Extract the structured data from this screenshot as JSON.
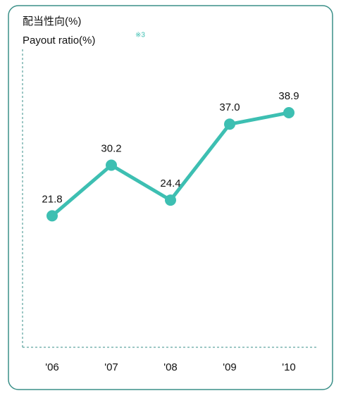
{
  "chart_data": {
    "type": "line",
    "title": "配当性向(%)",
    "subtitle": "Payout ratio(%)",
    "note_marker": "※3",
    "categories": [
      "'06",
      "'07",
      "'08",
      "'09",
      "'10"
    ],
    "series": [
      {
        "name": "Payout ratio",
        "color": "#3dbfb2",
        "values": [
          21.8,
          30.2,
          24.4,
          37.0,
          38.9
        ],
        "value_labels": [
          "21.8",
          "30.2",
          "24.4",
          "37.0",
          "38.9"
        ]
      }
    ],
    "ylim": [
      0,
      50
    ]
  }
}
